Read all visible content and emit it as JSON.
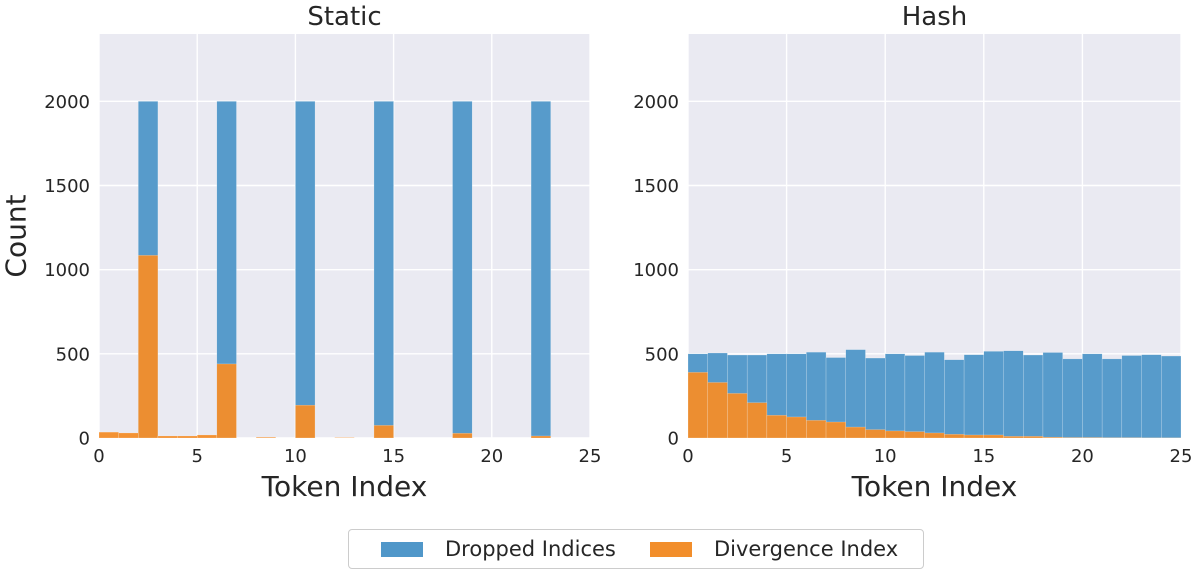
{
  "figure": {
    "colors": {
      "dropped": "#5097c9",
      "divergence": "#f28e2b",
      "axes_bg": "#eaeaf2",
      "grid": "#ffffff",
      "text": "#262626"
    },
    "legend": {
      "placement": "bottom-center",
      "entries": [
        {
          "label": "Dropped Indices",
          "color": "#5097c9"
        },
        {
          "label": "Divergence Index",
          "color": "#f28e2b"
        }
      ]
    }
  },
  "chart_data": [
    {
      "type": "bar",
      "title": "Static",
      "xlabel": "Token Index",
      "ylabel": "Count",
      "xlim": [
        0,
        25
      ],
      "ylim": [
        0,
        2400
      ],
      "xticks": [
        0,
        5,
        10,
        15,
        20,
        25
      ],
      "yticks": [
        0,
        500,
        1000,
        1500,
        2000
      ],
      "grid": true,
      "bin_width": 1,
      "series": [
        {
          "name": "Dropped Indices",
          "color": "#5097c9",
          "bins": [
            [
              2,
              2000
            ],
            [
              6,
              2000
            ],
            [
              10,
              2000
            ],
            [
              14,
              2000
            ],
            [
              18,
              2000
            ],
            [
              22,
              2000
            ]
          ]
        },
        {
          "name": "Divergence Index",
          "color": "#f28e2b",
          "bins": [
            [
              0,
              35
            ],
            [
              1,
              30
            ],
            [
              2,
              1085
            ],
            [
              3,
              12
            ],
            [
              4,
              12
            ],
            [
              5,
              18
            ],
            [
              6,
              440
            ],
            [
              8,
              5
            ],
            [
              10,
              195
            ],
            [
              12,
              3
            ],
            [
              14,
              75
            ],
            [
              18,
              28
            ],
            [
              22,
              12
            ]
          ]
        }
      ]
    },
    {
      "type": "bar",
      "title": "Hash",
      "xlabel": "Token Index",
      "ylabel": "",
      "xlim": [
        0,
        25
      ],
      "ylim": [
        0,
        2400
      ],
      "xticks": [
        0,
        5,
        10,
        15,
        20,
        25
      ],
      "yticks": [
        0,
        500,
        1000,
        1500,
        2000
      ],
      "grid": true,
      "bin_width": 1,
      "series": [
        {
          "name": "Dropped Indices",
          "color": "#5097c9",
          "bins": [
            [
              0,
              500
            ],
            [
              1,
              505
            ],
            [
              2,
              493
            ],
            [
              3,
              493
            ],
            [
              4,
              500
            ],
            [
              5,
              500
            ],
            [
              6,
              510
            ],
            [
              7,
              478
            ],
            [
              8,
              525
            ],
            [
              9,
              475
            ],
            [
              10,
              500
            ],
            [
              11,
              490
            ],
            [
              12,
              510
            ],
            [
              13,
              465
            ],
            [
              14,
              495
            ],
            [
              15,
              515
            ],
            [
              16,
              518
            ],
            [
              17,
              493
            ],
            [
              18,
              508
            ],
            [
              19,
              470
            ],
            [
              20,
              500
            ],
            [
              21,
              470
            ],
            [
              22,
              490
            ],
            [
              23,
              495
            ],
            [
              24,
              487
            ]
          ]
        },
        {
          "name": "Divergence Index",
          "color": "#f28e2b",
          "bins": [
            [
              0,
              390
            ],
            [
              1,
              330
            ],
            [
              2,
              265
            ],
            [
              3,
              210
            ],
            [
              4,
              135
            ],
            [
              5,
              125
            ],
            [
              6,
              105
            ],
            [
              7,
              95
            ],
            [
              8,
              65
            ],
            [
              9,
              50
            ],
            [
              10,
              42
            ],
            [
              11,
              38
            ],
            [
              12,
              30
            ],
            [
              13,
              22
            ],
            [
              14,
              18
            ],
            [
              15,
              18
            ],
            [
              16,
              10
            ],
            [
              17,
              10
            ],
            [
              18,
              5
            ],
            [
              19,
              3
            ],
            [
              20,
              3
            ],
            [
              21,
              2
            ],
            [
              22,
              2
            ],
            [
              23,
              1
            ],
            [
              24,
              1
            ]
          ]
        }
      ]
    }
  ]
}
